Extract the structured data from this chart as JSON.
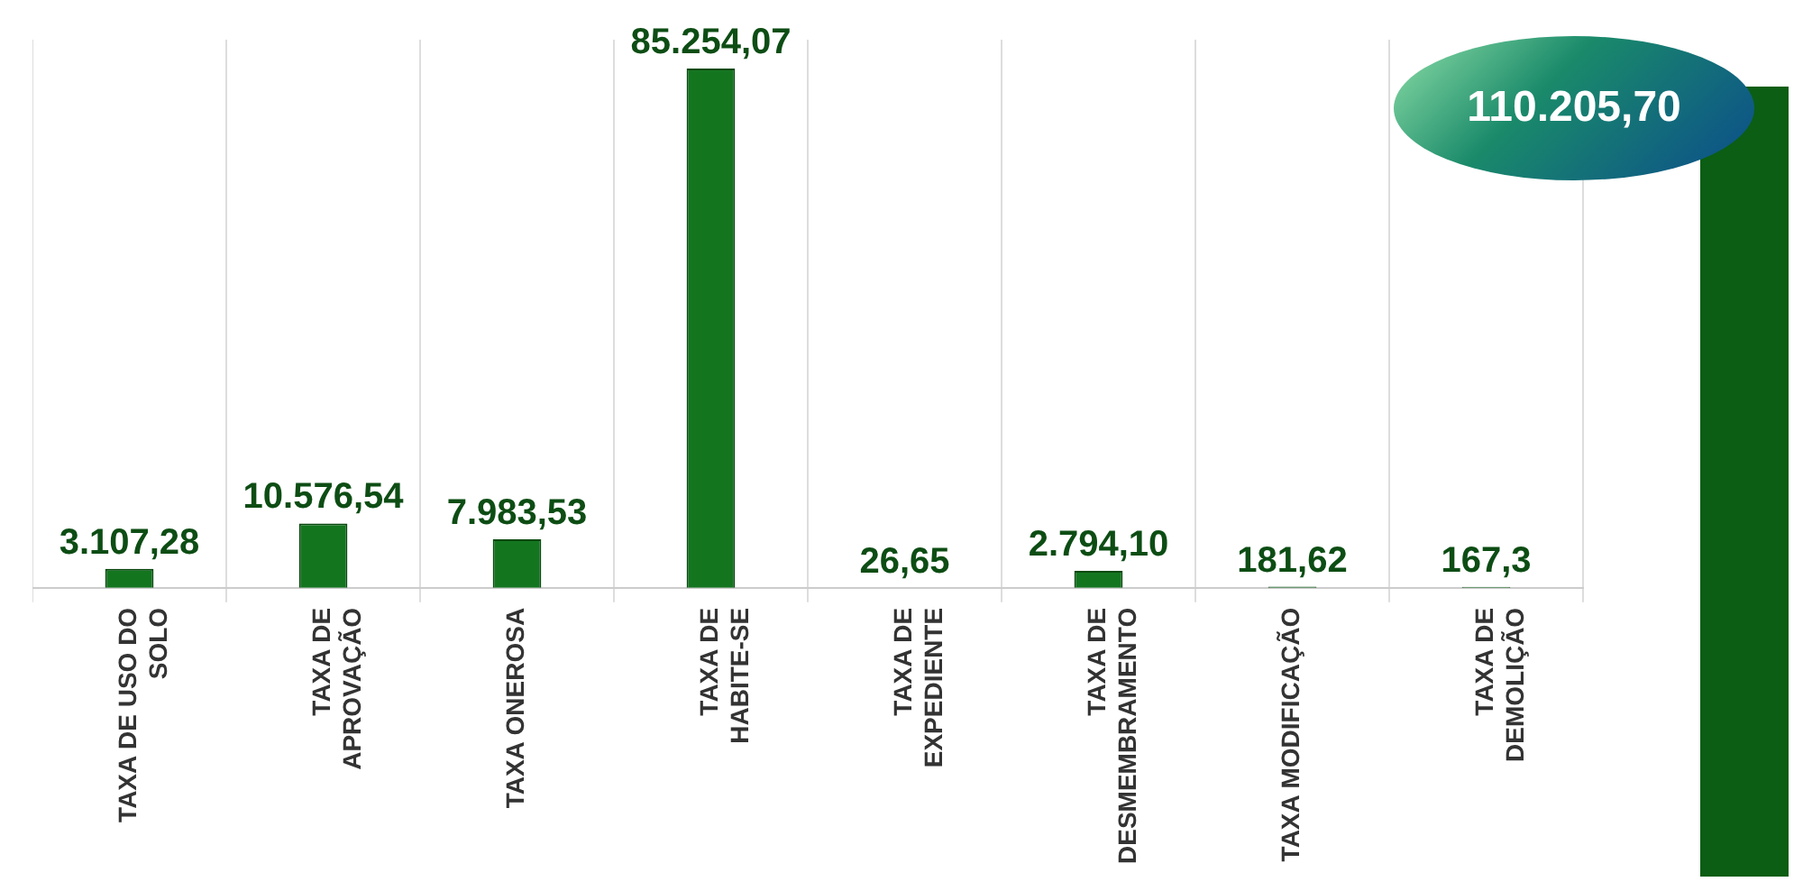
{
  "chart_data": {
    "type": "bar",
    "categories": [
      "TAXA DE USO DO SOLO",
      "TAXA DE APROVAÇÃO",
      "TAXA ONEROSA",
      "TAXA DE HABITE-SE",
      "TAXA DE EXPEDIENTE",
      "TAXA DE DESMEMBRAMENTO",
      "TAXA MODIFICAÇÃO",
      "TAXA DE DEMOLIÇÃO"
    ],
    "values": [
      3107.28,
      10576.54,
      7983.53,
      85254.07,
      26.65,
      2794.1,
      181.62,
      167.3
    ],
    "value_labels": [
      "3.107,28",
      "10.576,54",
      "7.983,53",
      "85.254,07",
      "26,65",
      "2.794,10",
      "181,62",
      "167,3"
    ],
    "color": "#13761f",
    "annotations": [
      "110.205,70"
    ]
  }
}
